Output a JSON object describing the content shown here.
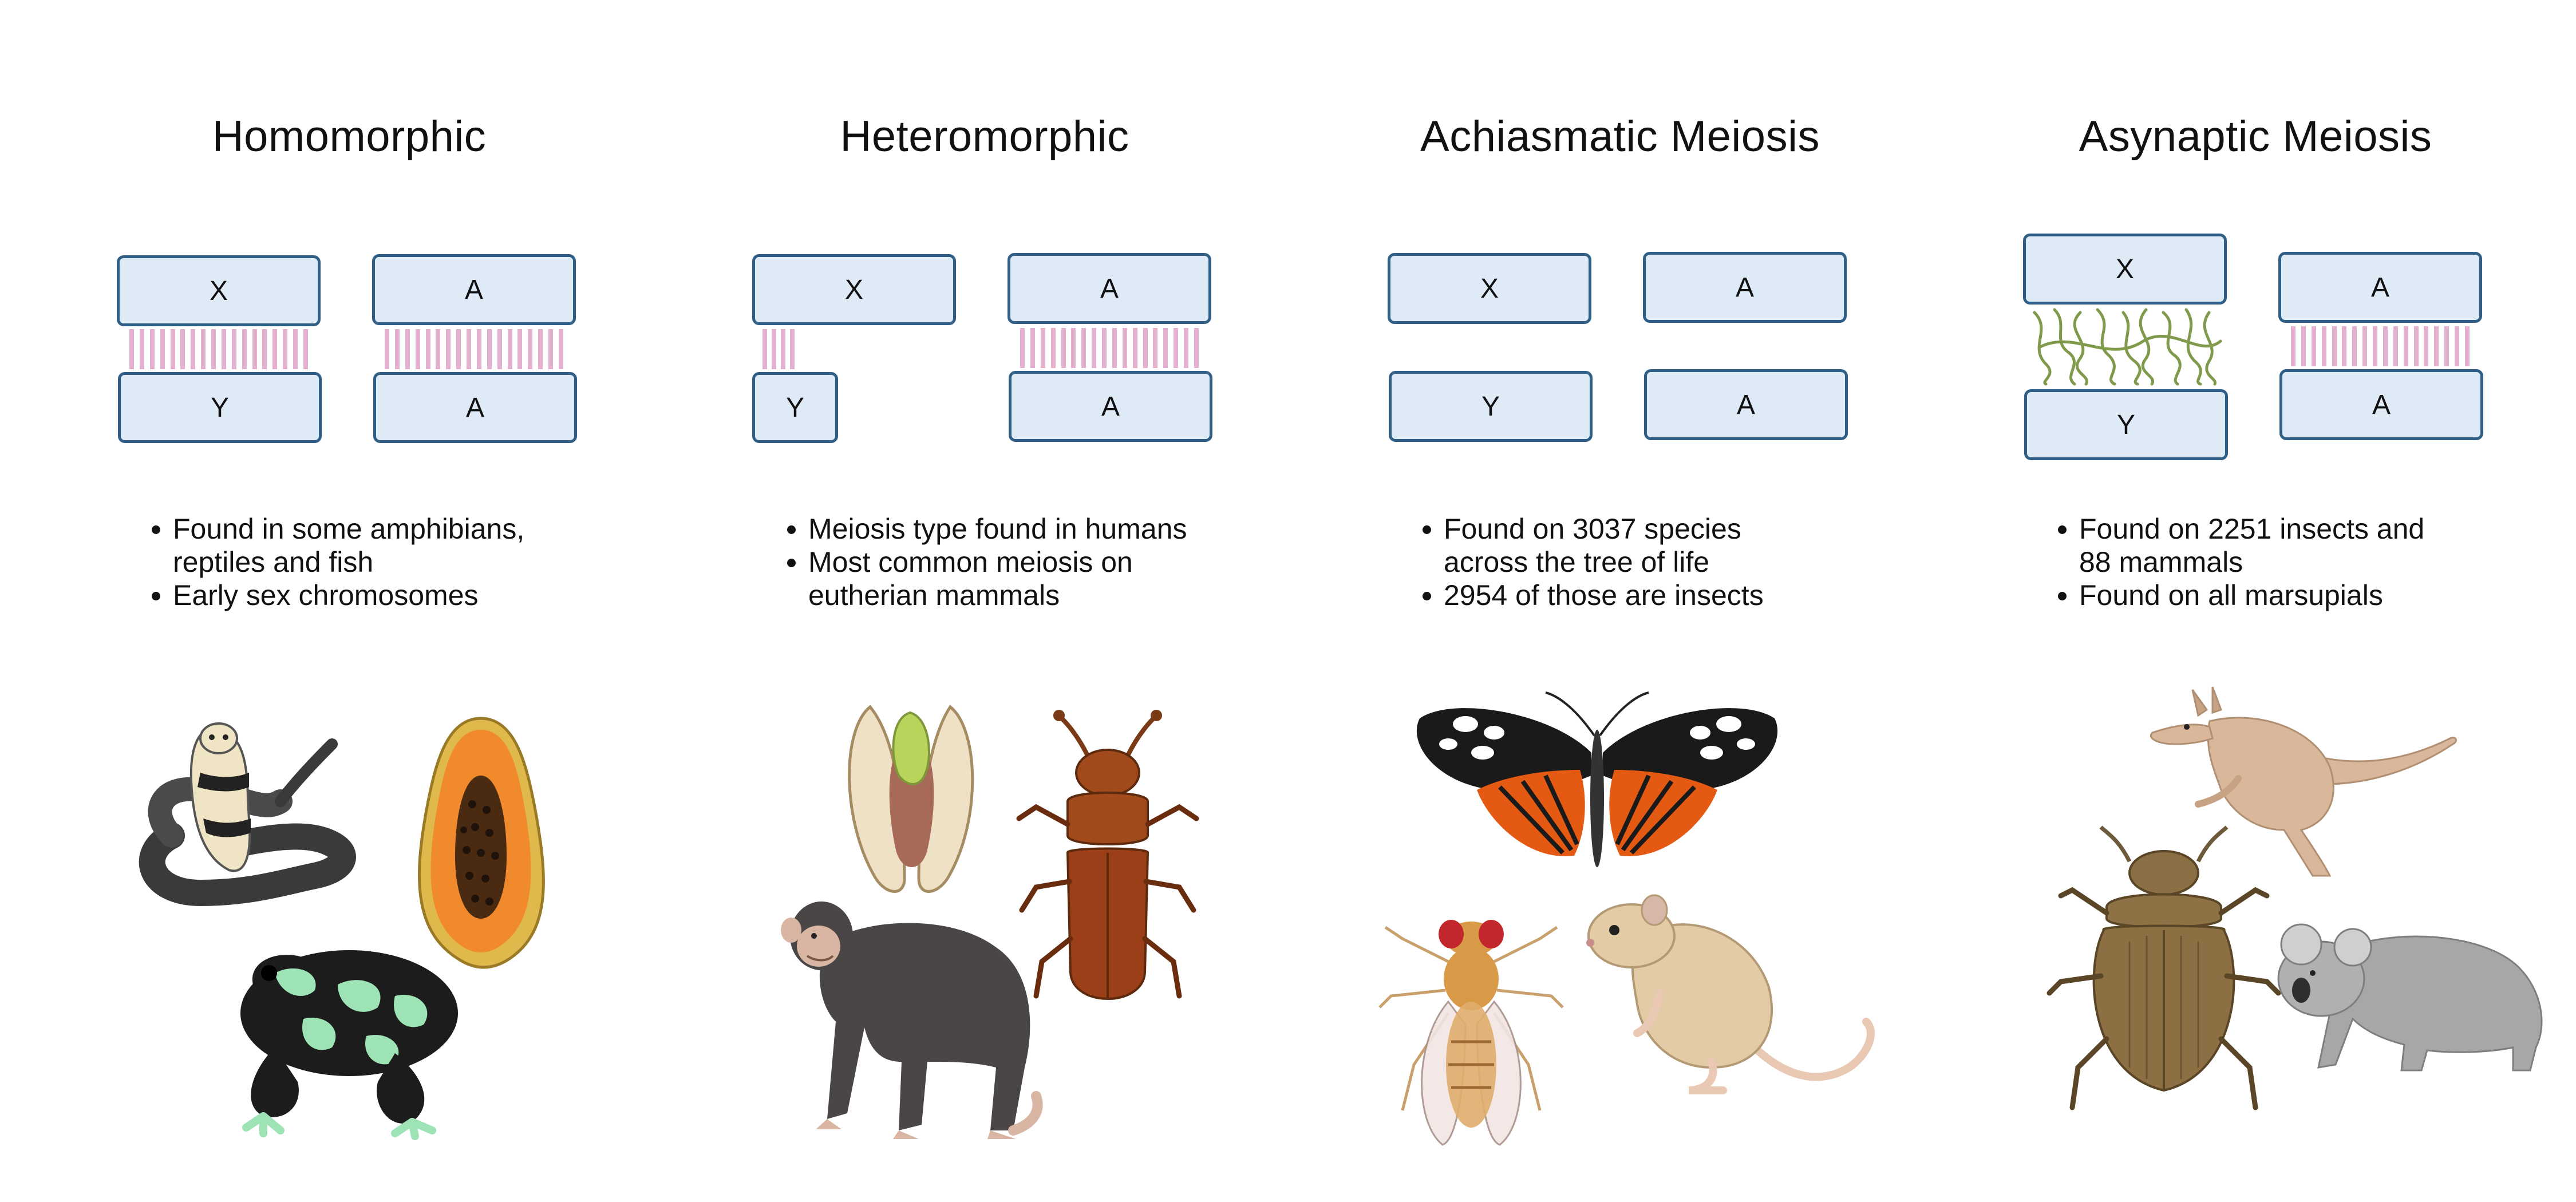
{
  "panels": [
    {
      "title": "Homomorphic",
      "chromosomes": {
        "left_top": "X",
        "left_bottom": "Y",
        "right_top": "A",
        "right_bottom": "A"
      },
      "bullets": [
        "Found in some amphibians, reptiles and fish",
        "Early sex chromosomes"
      ],
      "illustrations": [
        "cobra-snake",
        "papaya",
        "poison-dart-frog"
      ]
    },
    {
      "title": "Heteromorphic",
      "chromosomes": {
        "left_top": "X",
        "left_bottom": "Y",
        "right_top": "A",
        "right_bottom": "A"
      },
      "bullets": [
        "Meiosis type found in humans",
        "Most common meiosis on eutherian mammals"
      ],
      "illustrations": [
        "pistachio",
        "red-flour-beetle",
        "chimpanzee"
      ]
    },
    {
      "title": "Achiasmatic Meiosis",
      "chromosomes": {
        "left_top": "X",
        "left_bottom": "Y",
        "right_top": "A",
        "right_bottom": "A"
      },
      "bullets": [
        "Found on 3037 species across the tree of life",
        "2954 of those are insects"
      ],
      "illustrations": [
        "butterfly",
        "fruit-fly",
        "gerbil"
      ]
    },
    {
      "title": "Asynaptic Meiosis",
      "chromosomes": {
        "left_top": "X",
        "left_bottom": "Y",
        "right_top": "A",
        "right_bottom": "A"
      },
      "bullets": [
        "Found on 2251 insects and 88 mammals",
        "Found on all marsupials"
      ],
      "illustrations": [
        "kangaroo",
        "dung-beetle",
        "koala"
      ]
    }
  ],
  "colors": {
    "chromosome_fill": "#dfeaf7",
    "chromosome_border": "#2f5f86",
    "synapsis_links": "#e3b0d0",
    "asynaptic_fibers": "#7f9a4a"
  }
}
